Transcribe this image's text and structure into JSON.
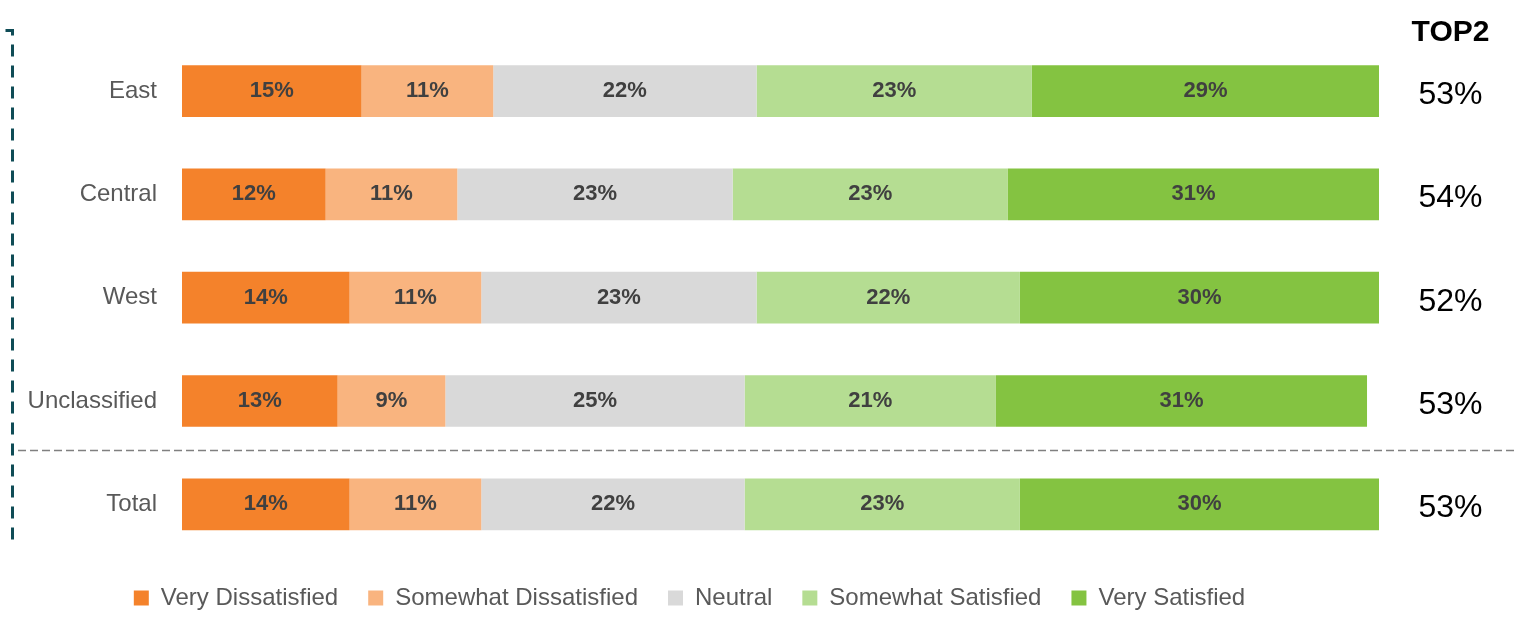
{
  "chart_data": {
    "type": "bar",
    "orientation": "horizontal",
    "stacked": true,
    "categories": [
      "East",
      "Central",
      "West",
      "Unclassified",
      "Total"
    ],
    "series": [
      {
        "name": "Very Dissatisfied",
        "color": "#f4822b",
        "values": [
          15,
          12,
          14,
          13,
          14
        ],
        "value_labels": [
          "15%",
          "12%",
          "14%",
          "13%",
          "14%"
        ]
      },
      {
        "name": "Somewhat Dissatisfied",
        "color": "#f9b47f",
        "values": [
          11,
          11,
          11,
          9,
          11
        ],
        "value_labels": [
          "11%",
          "11%",
          "11%",
          "9%",
          "11%"
        ]
      },
      {
        "name": "Neutral",
        "color": "#d9d9d9",
        "values": [
          22,
          23,
          23,
          25,
          22
        ],
        "value_labels": [
          "22%",
          "23%",
          "23%",
          "25%",
          "22%"
        ]
      },
      {
        "name": "Somewhat Satisfied",
        "color": "#b5dd92",
        "values": [
          23,
          23,
          22,
          21,
          23
        ],
        "value_labels": [
          "23%",
          "23%",
          "22%",
          "21%",
          "23%"
        ]
      },
      {
        "name": "Very Satisfied",
        "color": "#84c341",
        "values": [
          29,
          31,
          30,
          31,
          30
        ],
        "value_labels": [
          "29%",
          "31%",
          "30%",
          "31%",
          "30%"
        ]
      }
    ],
    "xlim": [
      0,
      100
    ],
    "tick_labels": "y",
    "grid": false,
    "legend": "bottom",
    "annotations": [
      "TOP2",
      "53%",
      "54%",
      "52%",
      "53%",
      "53%"
    ]
  }
}
